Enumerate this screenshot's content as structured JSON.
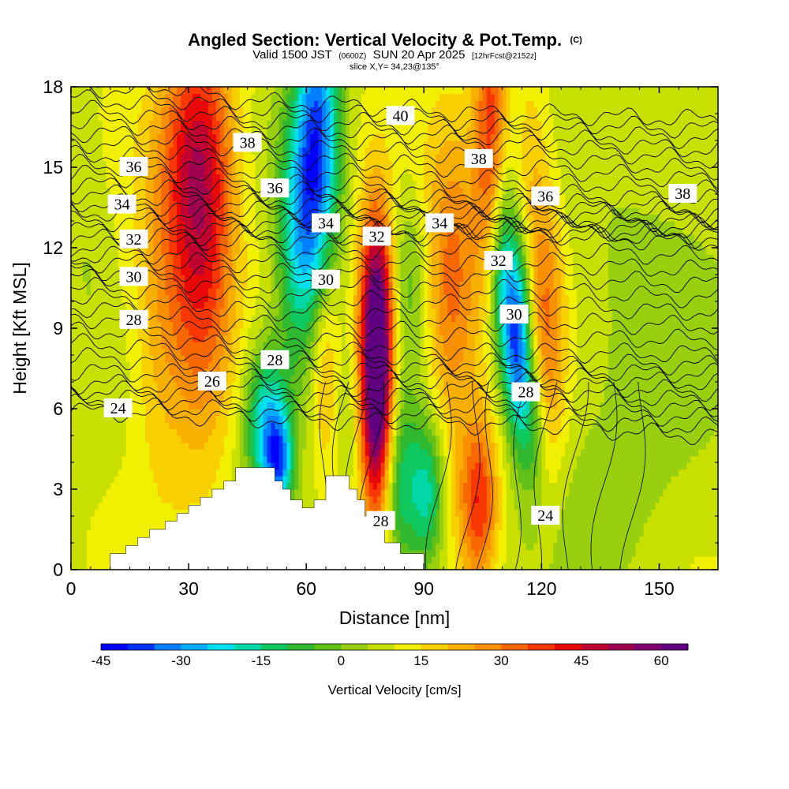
{
  "header": {
    "title_main": "Angled Section: Vertical Velocity & Pot.Temp.",
    "title_mark": "(C)",
    "subtitle_a": "Valid 1500 JST",
    "subtitle_b": "(0600Z)",
    "subtitle_c": "SUN 20 Apr 2025",
    "subtitle_d": "[12hrFcst@2152z]",
    "slice": "slice X,Y= 34,23@135°"
  },
  "chart_data": {
    "type": "heatmap",
    "title": "Angled Section: Vertical Velocity & Pot.Temp.",
    "xlabel": "Distance [nm]",
    "ylabel": "Height [Kft MSL]",
    "xlim": [
      0,
      165
    ],
    "ylim": [
      0,
      18
    ],
    "xticks": [
      0,
      30,
      60,
      90,
      120,
      150
    ],
    "yticks": [
      0,
      3,
      6,
      9,
      12,
      15,
      18
    ],
    "colorbar": {
      "label": "Vertical Velocity [cm/s]",
      "min": -45,
      "step": 5,
      "ticks": [
        -45,
        -30,
        -15,
        0,
        15,
        30,
        45,
        60
      ],
      "tick_labels": [
        "-45",
        "-30",
        "-15",
        "0",
        "15",
        "30",
        "45",
        "60"
      ],
      "colors": [
        "#0000ff",
        "#0033ff",
        "#0080ff",
        "#00b0ff",
        "#00e0ee",
        "#00d8a8",
        "#10c860",
        "#30b830",
        "#60c018",
        "#98d010",
        "#c8e000",
        "#f0f000",
        "#f8d000",
        "#f8b000",
        "#f89000",
        "#f86800",
        "#f83800",
        "#e80808",
        "#c00030",
        "#a00050",
        "#800070",
        "#600080"
      ]
    },
    "velocity_features": [
      {
        "x": 33,
        "z": 12,
        "sx": 6,
        "sz": 5,
        "w": 32
      },
      {
        "x": 32,
        "z": 16,
        "sx": 7,
        "sz": 3,
        "w": 16
      },
      {
        "x": 22,
        "z": 9,
        "sx": 5,
        "sz": 4,
        "w": 12
      },
      {
        "x": 63,
        "z": 16,
        "sx": 4,
        "sz": 4,
        "w": -42
      },
      {
        "x": 58,
        "z": 12,
        "sx": 4,
        "sz": 3.5,
        "w": -25
      },
      {
        "x": 50,
        "z": 5.5,
        "sx": 4,
        "sz": 2,
        "w": -34
      },
      {
        "x": 53,
        "z": 4,
        "sx": 2.5,
        "sz": 1.2,
        "w": -30
      },
      {
        "x": 78,
        "z": 7,
        "sx": 2.8,
        "sz": 3.5,
        "w": 62
      },
      {
        "x": 78,
        "z": 10,
        "sx": 3.5,
        "sz": 3,
        "w": 22
      },
      {
        "x": 65,
        "z": 8,
        "sx": 2.8,
        "sz": 3,
        "w": 14
      },
      {
        "x": 70,
        "z": 6,
        "sx": 2.2,
        "sz": 2,
        "w": -6
      },
      {
        "x": 84,
        "z": 3,
        "sx": 3.5,
        "sz": 2.5,
        "w": -22
      },
      {
        "x": 91,
        "z": 2.8,
        "sx": 3,
        "sz": 2,
        "w": -26
      },
      {
        "x": 86,
        "z": 11,
        "sx": 4,
        "sz": 2.5,
        "w": -12
      },
      {
        "x": 97,
        "z": 10.5,
        "sx": 5,
        "sz": 4,
        "w": 24
      },
      {
        "x": 104,
        "z": 2.5,
        "sx": 3.5,
        "sz": 2.2,
        "w": 30
      },
      {
        "x": 107,
        "z": 16.5,
        "sx": 3,
        "sz": 4,
        "w": 28
      },
      {
        "x": 110,
        "z": 11,
        "sx": 2.5,
        "sz": 2.5,
        "w": -28
      },
      {
        "x": 114,
        "z": 8.5,
        "sx": 2.5,
        "sz": 2.5,
        "w": -45
      },
      {
        "x": 118,
        "z": 5.5,
        "sx": 2.5,
        "sz": 2,
        "w": -20
      },
      {
        "x": 121,
        "z": 9,
        "sx": 3.5,
        "sz": 4,
        "w": 22
      },
      {
        "x": 117,
        "z": 15,
        "sx": 3,
        "sz": 3,
        "w": 10
      },
      {
        "x": 4,
        "z": 12,
        "sx": 4,
        "sz": 3,
        "w": -4
      },
      {
        "x": 150,
        "z": 10,
        "sx": 15,
        "sz": 6,
        "w": -6
      },
      {
        "x": 135,
        "z": 2,
        "sx": 12,
        "sz": 3,
        "w": -5
      }
    ],
    "theta_contours": [
      {
        "y": [
          5.9,
          5.6,
          5.4,
          5.0
        ],
        "label": "24",
        "lx": 12,
        "lz": 6.0
      },
      {
        "y": [
          7.0,
          6.9,
          6.8,
          6.4
        ],
        "label": "26",
        "lx": 36,
        "lz": 7.0
      },
      {
        "y": [
          9.2,
          8.4,
          7.8,
          7.8
        ],
        "label": "28",
        "lx": 16,
        "lz": 9.3
      },
      {
        "y": [
          10.8,
          10.5,
          10.3,
          10.0
        ],
        "label": "30",
        "lx": 16,
        "lz": 10.9
      },
      {
        "y": [
          12.0,
          12.3,
          12.5,
          12.2
        ],
        "label": "32",
        "lx": 16,
        "lz": 12.3
      },
      {
        "y": [
          13.4,
          13.2,
          13.0,
          12.8
        ],
        "label": "34",
        "lx": 13,
        "lz": 13.6
      },
      {
        "y": [
          14.9,
          14.2,
          13.8,
          13.6
        ],
        "label": "36",
        "lx": 16,
        "lz": 15.0
      },
      {
        "y": [
          16.6,
          16.0,
          15.8,
          15.2
        ],
        "label": "38",
        "lx": 45,
        "lz": 15.9
      },
      {
        "y": [
          18.4,
          17.4,
          17.0,
          16.8
        ],
        "label": "40",
        "lx": 84,
        "lz": 16.9
      }
    ],
    "theta_labels": [
      {
        "label": "36",
        "x": 52,
        "z": 14.2
      },
      {
        "label": "34",
        "x": 65,
        "z": 12.9
      },
      {
        "label": "32",
        "x": 78,
        "z": 12.4
      },
      {
        "label": "34",
        "x": 94,
        "z": 12.9
      },
      {
        "label": "38",
        "x": 104,
        "z": 15.3
      },
      {
        "label": "36",
        "x": 121,
        "z": 13.9
      },
      {
        "label": "38",
        "x": 156,
        "z": 14.0
      },
      {
        "label": "30",
        "x": 65,
        "z": 10.8
      },
      {
        "label": "28",
        "x": 52,
        "z": 7.8
      },
      {
        "label": "32",
        "x": 109,
        "z": 11.5
      },
      {
        "label": "30",
        "x": 113,
        "z": 9.5
      },
      {
        "label": "28",
        "x": 116,
        "z": 6.6
      },
      {
        "label": "28",
        "x": 79,
        "z": 1.8
      },
      {
        "label": "24",
        "x": 121,
        "z": 2.0
      }
    ],
    "terrain": {
      "x": [
        0,
        10,
        10,
        14,
        14,
        17,
        17,
        20,
        20,
        24,
        24,
        27,
        27,
        30,
        30,
        33,
        33,
        36,
        36,
        39,
        39,
        42,
        42,
        52,
        52,
        54,
        54,
        56,
        56,
        59,
        59,
        62,
        62,
        65,
        65,
        71,
        71,
        73,
        73,
        75,
        75,
        77,
        77,
        80,
        80,
        84,
        84,
        90,
        90,
        165
      ],
      "z": [
        0,
        0,
        0.6,
        0.6,
        0.9,
        0.9,
        1.2,
        1.2,
        1.5,
        1.5,
        1.8,
        1.8,
        2.1,
        2.1,
        2.4,
        2.4,
        2.7,
        2.7,
        3.0,
        3.0,
        3.3,
        3.3,
        3.8,
        3.8,
        3.3,
        3.3,
        3.0,
        3.0,
        2.6,
        2.6,
        2.3,
        2.3,
        2.6,
        2.6,
        3.5,
        3.5,
        3.0,
        3.0,
        2.6,
        2.6,
        2.0,
        2.0,
        1.5,
        1.5,
        1.0,
        1.0,
        0.6,
        0.6,
        0,
        0
      ]
    }
  }
}
